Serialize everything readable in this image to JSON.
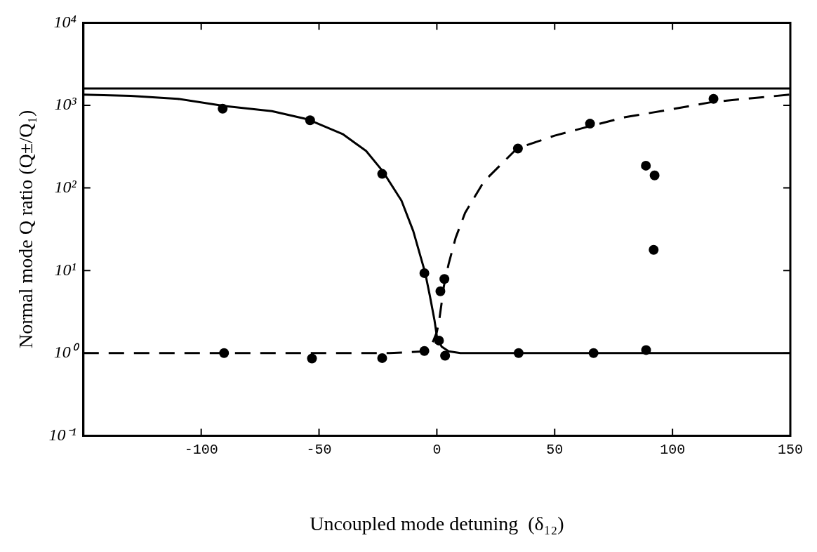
{
  "chart_data": {
    "type": "line",
    "xlabel": "Uncoupled mode detuning  (δ₁₂)",
    "ylabel": "Normal mode Q ratio (Q±/Q₁)",
    "log": "y",
    "grid": false,
    "legend": false,
    "xlim": [
      -150,
      150
    ],
    "xticks": [
      {
        "value": -150,
        "label": null
      },
      -100,
      -50,
      0,
      50,
      100,
      150
    ],
    "ylim": [
      0.1,
      10000
    ],
    "yticks": [
      {
        "value": 0.1,
        "label": "10⁻¹"
      },
      {
        "value": 1,
        "label": "10⁰"
      },
      {
        "value": 10,
        "label": "10¹"
      },
      {
        "value": 100,
        "label": "10²"
      },
      {
        "value": 1000,
        "label": "10³"
      },
      {
        "value": 10000,
        "label": "10⁴"
      }
    ],
    "ref_lines": [
      {
        "axis": "y",
        "value": 1600,
        "color": "#000000",
        "line_style": "solid"
      }
    ],
    "series": [
      {
        "type": "line",
        "color": "#000000",
        "line_style": "solid",
        "marker": "none",
        "x": [
          -150,
          -130,
          -110,
          -90,
          -70,
          -55,
          -40,
          -30,
          -23,
          -15,
          -10,
          -5,
          -3,
          -1,
          0,
          2,
          5,
          10,
          20,
          150
        ],
        "values": [
          1350,
          1300,
          1200,
          980,
          850,
          680,
          450,
          280,
          160,
          70,
          30,
          9.5,
          5,
          2.5,
          1.6,
          1.2,
          1.05,
          1.0,
          1.0,
          1.0
        ]
      },
      {
        "type": "line",
        "color": "#000000",
        "line_style": "dashed",
        "marker": "none",
        "x": [
          -150,
          -20,
          -5,
          -2,
          0,
          1,
          2,
          3,
          5,
          8,
          12,
          20,
          34,
          50,
          65,
          80,
          100,
          117,
          150
        ],
        "values": [
          1.0,
          1.0,
          1.05,
          1.3,
          1.8,
          2.5,
          4,
          6.5,
          12,
          25,
          50,
          120,
          300,
          430,
          560,
          720,
          900,
          1100,
          1350
        ]
      },
      {
        "type": "scatter",
        "color": "#000000",
        "marker": "circle",
        "x": [
          -90.9,
          -53.8,
          -23.2,
          -5.3,
          -5.3,
          -90.3,
          -53,
          -23.2,
          0.9,
          1.5,
          3.2,
          3.5,
          34.4,
          34.7,
          65,
          66.5,
          88.7,
          88.8,
          92,
          92.4,
          117.4
        ],
        "values": [
          910,
          660,
          148,
          9.3,
          1.06,
          1.0,
          0.86,
          0.87,
          1.42,
          5.6,
          7.9,
          0.93,
          300,
          1.0,
          600,
          1.0,
          186,
          1.09,
          17.8,
          142,
          1200
        ]
      }
    ]
  }
}
